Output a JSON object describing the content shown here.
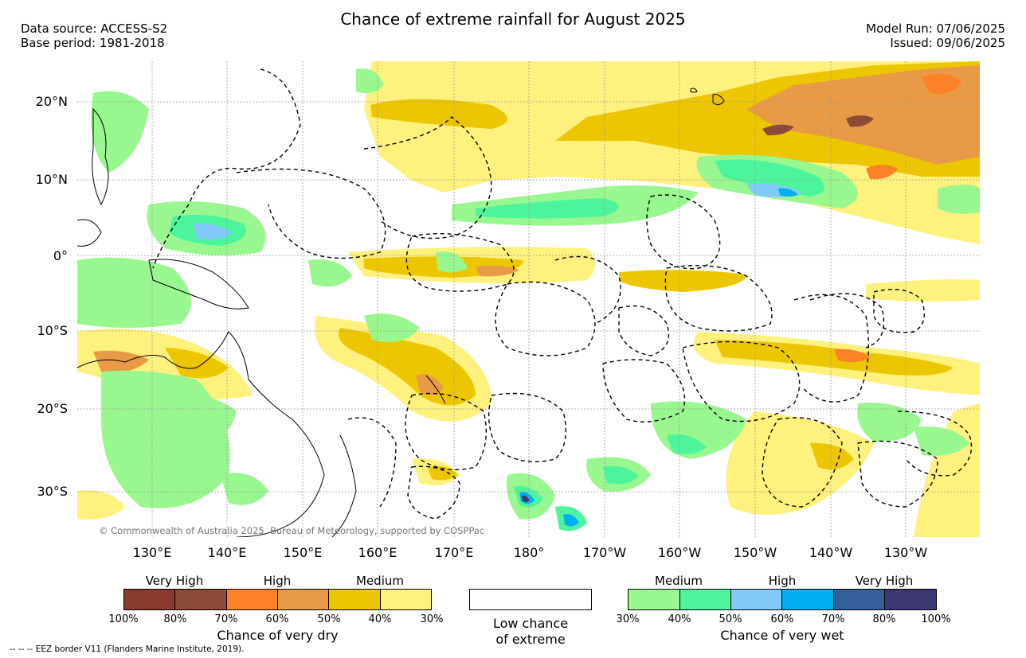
{
  "title": "Chance of extreme rainfall for August 2025",
  "meta_left": [
    "Data source: ACCESS-S2",
    "Base period: 1981-2018"
  ],
  "meta_right": [
    "Model Run: 07/06/2025",
    "Issued: 09/06/2025"
  ],
  "lat_labels": [
    "20°N",
    "10°N",
    "0°",
    "10°S",
    "20°S",
    "30°S"
  ],
  "lon_labels": [
    "130°E",
    "140°E",
    "150°E",
    "160°E",
    "170°E",
    "180°",
    "170°W",
    "160°W",
    "150°W",
    "140°W",
    "130°W"
  ],
  "dry_legend": {
    "categories": [
      "Very High",
      "High",
      "Medium"
    ],
    "colors": [
      "#8b3a2f",
      "#8c4b36",
      "#fd8126",
      "#e99a46",
      "#ecc700",
      "#fff17d"
    ],
    "ticks": [
      "100%",
      "80%",
      "70%",
      "60%",
      "50%",
      "40%",
      "30%"
    ],
    "title": "Chance of very dry"
  },
  "low_legend": {
    "text_line1": "Low chance",
    "text_line2": "of extreme"
  },
  "wet_legend": {
    "categories": [
      "Medium",
      "High",
      "Very High"
    ],
    "colors": [
      "#99f78f",
      "#4cf59c",
      "#82cafa",
      "#00b0f0",
      "#345f9a",
      "#3c3872"
    ],
    "ticks": [
      "30%",
      "40%",
      "50%",
      "60%",
      "70%",
      "80%",
      "100%"
    ],
    "title": "Chance of very wet"
  },
  "copyright": "© Commonwealth of Australia 2025, Bureau of Meteorology, supported by COSPPac",
  "eez_note": "--  --  -- EEZ border V11 (Flanders Marine Institute, 2019).",
  "map_palette": {
    "dry_30": "#fff17d",
    "dry_50": "#ecc700",
    "dry_60": "#e99a46",
    "dry_70": "#fd8126",
    "dry_80": "#8c4b36",
    "wet_30": "#99f78f",
    "wet_40": "#4cf59c",
    "wet_50": "#82cafa",
    "wet_60": "#00b0f0",
    "wet_80": "#3c3872"
  }
}
